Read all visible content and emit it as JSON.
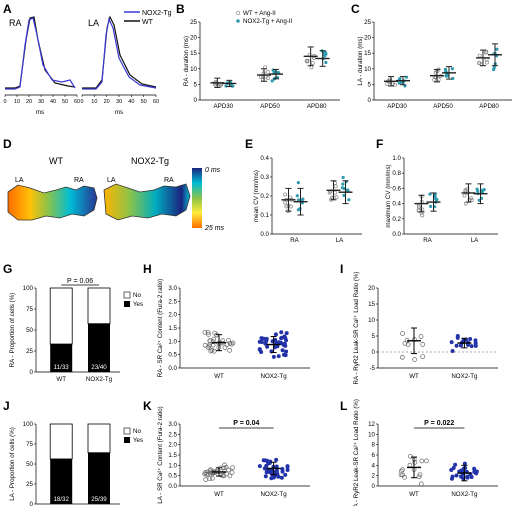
{
  "panels": {
    "A": "A",
    "B": "B",
    "C": "C",
    "D": "D",
    "E": "E",
    "F": "F",
    "G": "G",
    "H": "H",
    "I": "I",
    "J": "J",
    "K": "K",
    "L": "L"
  },
  "colors": {
    "wt": "#111111",
    "tg": "#3b3bd6",
    "dot_blue": "#2233aa",
    "dot_teal": "#2e9bb0",
    "dot_grey": "#888888"
  },
  "panelA": {
    "label_ra": "RA",
    "label_la": "LA",
    "xlabel": "ms",
    "ticks": [
      "0",
      "10",
      "20",
      "30",
      "40",
      "50",
      "60"
    ],
    "legend": [
      {
        "name": "NOX2-Tg",
        "color": "#3b3bd6"
      },
      {
        "name": "WT",
        "color": "#111111"
      }
    ]
  },
  "chart_data": [
    {
      "panel": "B",
      "type": "scatter",
      "ylabel": "RA - duration (ms)",
      "categories": [
        "APD30",
        "APD50",
        "APD80"
      ],
      "yticks": [
        "0",
        "5",
        "10",
        "15",
        "20",
        "25"
      ],
      "ylim": [
        0,
        25
      ],
      "legend": [
        "WT + Ang-II",
        "NOX2-Tg + Ang-II"
      ],
      "series": [
        {
          "name": "WT + Ang-II",
          "means": [
            5.5,
            8.0,
            14.0
          ],
          "sd": [
            1.5,
            2.0,
            3.0
          ]
        },
        {
          "name": "NOX2-Tg + Ang-II",
          "means": [
            5.3,
            8.3,
            13.3
          ],
          "sd": [
            1.0,
            1.5,
            2.5
          ]
        }
      ]
    },
    {
      "panel": "C",
      "type": "scatter",
      "ylabel": "LA - duration (ms)",
      "categories": [
        "APD30",
        "APD50",
        "APD80"
      ],
      "yticks": [
        "0",
        "5",
        "10",
        "15",
        "20",
        "25"
      ],
      "ylim": [
        0,
        25
      ],
      "series": [
        {
          "name": "WT + Ang-II",
          "means": [
            6.0,
            7.8,
            13.5
          ],
          "sd": [
            1.5,
            2.0,
            2.5
          ]
        },
        {
          "name": "NOX2-Tg + Ang-II",
          "means": [
            6.2,
            8.7,
            14.5
          ],
          "sd": [
            1.3,
            2.0,
            3.5
          ]
        }
      ]
    },
    {
      "panel": "E",
      "type": "scatter",
      "ylabel": "mean CV (mm/ms)",
      "categories": [
        "RA",
        "LA"
      ],
      "yticks": [
        "0.0",
        "0.1",
        "0.2",
        "0.3",
        "0.4"
      ],
      "ylim": [
        0,
        0.4
      ],
      "series": [
        {
          "name": "WT",
          "means": [
            0.18,
            0.23
          ],
          "sd": [
            0.06,
            0.05
          ]
        },
        {
          "name": "NOX2-Tg",
          "means": [
            0.17,
            0.22
          ],
          "sd": [
            0.07,
            0.06
          ]
        }
      ]
    },
    {
      "panel": "F",
      "type": "scatter",
      "ylabel": "maximum CV (mm/ms)",
      "categories": [
        "RA",
        "LA"
      ],
      "yticks": [
        "0.0",
        "0.2",
        "0.4",
        "0.6",
        "0.8",
        "1.0"
      ],
      "ylim": [
        0,
        1.0
      ],
      "series": [
        {
          "name": "WT",
          "means": [
            0.4,
            0.54
          ],
          "sd": [
            0.11,
            0.12
          ]
        },
        {
          "name": "NOX2-Tg",
          "means": [
            0.42,
            0.53
          ],
          "sd": [
            0.12,
            0.13
          ]
        }
      ]
    },
    {
      "panel": "G",
      "type": "bar",
      "ylabel": "RA - Proportion of cells (%)",
      "categories": [
        "WT",
        "NOX2-Tg"
      ],
      "yes_percent": [
        33.3,
        57.5
      ],
      "labels": [
        "11/33",
        "23/40"
      ],
      "annotation": "P = 0.06",
      "legend": [
        "No",
        "Yes"
      ],
      "yticks": [
        "0",
        "25",
        "50",
        "75",
        "100"
      ]
    },
    {
      "panel": "H",
      "type": "scatter",
      "ylabel": "RA - SR Ca²⁺ Content (Fura-2 ratio)",
      "categories": [
        "WT",
        "NOX2-Tg"
      ],
      "yticks": [
        "0.0",
        "0.5",
        "1.0",
        "1.5",
        "2.0",
        "2.5",
        "3.0"
      ],
      "ylim": [
        0,
        3
      ],
      "means": [
        0.95,
        0.88
      ],
      "sd": [
        0.3,
        0.3
      ]
    },
    {
      "panel": "I",
      "type": "scatter",
      "ylabel": "RA - RyR2 Leak-SR Ca²⁺ Load Ratio (%)",
      "categories": [
        "WT",
        "NOX2-Tg"
      ],
      "yticks": [
        "-5",
        "0",
        "5",
        "10",
        "15",
        "20"
      ],
      "ylim": [
        -5,
        20
      ],
      "means": [
        3.5,
        2.8
      ],
      "sd": [
        4.0,
        1.5
      ]
    },
    {
      "panel": "J",
      "type": "bar",
      "ylabel": "LA - Proportion of cells (%)",
      "categories": [
        "WT",
        "NOX2-Tg"
      ],
      "yes_percent": [
        56.3,
        64.1
      ],
      "labels": [
        "18/32",
        "25/39"
      ],
      "legend": [
        "No",
        "Yes"
      ],
      "yticks": [
        "0",
        "25",
        "50",
        "75",
        "100"
      ]
    },
    {
      "panel": "K",
      "type": "scatter",
      "ylabel": "LA - SR Ca²⁺ Content (Fura-2 ratio)",
      "categories": [
        "WT",
        "NOX2-Tg"
      ],
      "yticks": [
        "0.0",
        "0.5",
        "1.0",
        "1.5",
        "2.0",
        "2.5",
        "3.0"
      ],
      "ylim": [
        0,
        3
      ],
      "means": [
        0.68,
        0.85
      ],
      "sd": [
        0.2,
        0.3
      ],
      "annotation": "P = 0.04"
    },
    {
      "panel": "L",
      "type": "scatter",
      "ylabel": "LA - RyR2 Leak-SR Ca²⁺ Load Ratio (%)",
      "categories": [
        "WT",
        "NOX2-Tg"
      ],
      "yticks": [
        "0",
        "2",
        "4",
        "6",
        "8",
        "10",
        "12"
      ],
      "ylim": [
        0,
        12
      ],
      "means": [
        3.6,
        2.5
      ],
      "sd": [
        2.0,
        1.5
      ],
      "annotation": "P = 0.022"
    }
  ],
  "panelD": {
    "wt_title": "WT",
    "tg_title": "NOX2-Tg",
    "la": "LA",
    "ra": "RA",
    "scale_top": "0 ms",
    "scale_bottom": "25 ms"
  }
}
